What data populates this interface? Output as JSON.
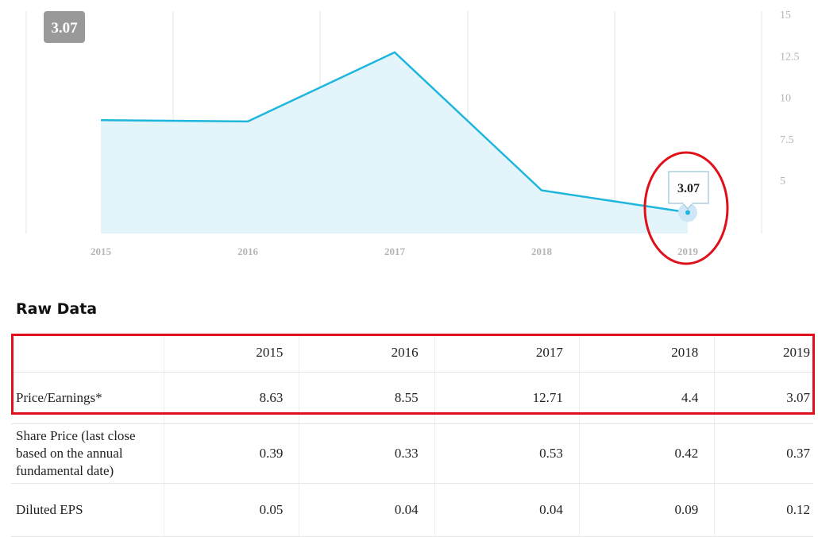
{
  "chart_data": {
    "type": "area",
    "x": [
      "2015",
      "2016",
      "2017",
      "2018",
      "2019"
    ],
    "series": [
      {
        "values": [
          8.63,
          8.55,
          12.71,
          4.4,
          3.07
        ]
      }
    ],
    "ylim": [
      1.8,
      15
    ],
    "yticks": [
      5,
      7.5,
      10,
      12.5,
      15
    ],
    "grid": true,
    "line_color": "#1fb6dd",
    "fill_color": "#e3f5fb"
  },
  "badge_value": "3.07",
  "tooltip_value": "3.07",
  "raw_data": {
    "title": "Raw Data",
    "header": [
      "",
      "2015",
      "2016",
      "2017",
      "2018",
      "2019"
    ],
    "rows": [
      {
        "label": "Price/Earnings*",
        "values": [
          "8.63",
          "8.55",
          "12.71",
          "4.4",
          "3.07"
        ]
      },
      {
        "label": "Share Price (last close based on the annual fundamental date)",
        "values": [
          "0.39",
          "0.33",
          "0.53",
          "0.42",
          "0.37"
        ]
      },
      {
        "label": "Diluted EPS",
        "values": [
          "0.05",
          "0.04",
          "0.04",
          "0.09",
          "0.12"
        ]
      }
    ]
  }
}
